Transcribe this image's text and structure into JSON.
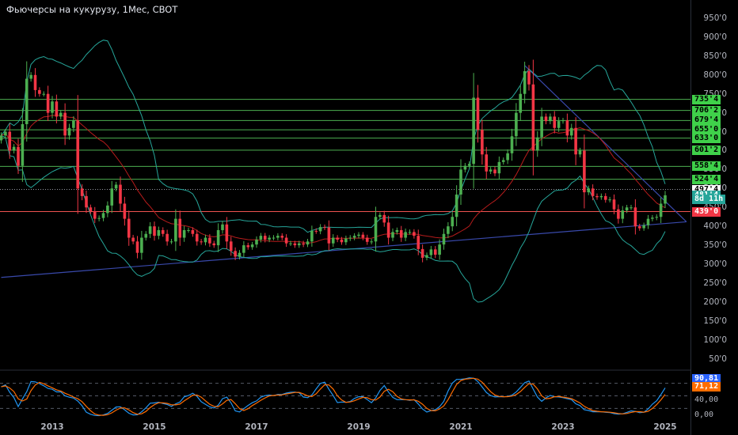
{
  "title": "Фьючерсы на кукурузу, 1Мес, CBOT",
  "price_axis": {
    "ticks": [
      "950'0",
      "900'0",
      "850'0",
      "800'0",
      "750'0",
      "700'0",
      "650'0",
      "600'0",
      "550'0",
      "500'0",
      "450'0",
      "400'0",
      "350'0",
      "300'0",
      "250'0",
      "200'0",
      "150'0",
      "100'0",
      "50'0"
    ]
  },
  "level_labels": [
    {
      "text": "735'4",
      "value": 735.5,
      "bg": "#3fd14a",
      "fg": "#000000"
    },
    {
      "text": "706'2",
      "value": 706.25,
      "bg": "#3fd14a",
      "fg": "#000000"
    },
    {
      "text": "679'4",
      "value": 679.5,
      "bg": "#3fd14a",
      "fg": "#000000"
    },
    {
      "text": "655'0",
      "value": 655.0,
      "bg": "#3fd14a",
      "fg": "#000000"
    },
    {
      "text": "633'0",
      "value": 633.0,
      "bg": "#3fd14a",
      "fg": "#000000"
    },
    {
      "text": "601'2",
      "value": 601.25,
      "bg": "#3fd14a",
      "fg": "#000000"
    },
    {
      "text": "558'4",
      "value": 558.5,
      "bg": "#3fd14a",
      "fg": "#000000"
    },
    {
      "text": "524'4",
      "value": 524.5,
      "bg": "#3fd14a",
      "fg": "#000000"
    },
    {
      "text": "497'4",
      "value": 497.5,
      "bg": "#ffffff",
      "fg": "#000000"
    },
    {
      "text": "481'4",
      "value": 481.5,
      "bg": "#26a69a",
      "fg": "#ffffff"
    },
    {
      "text": "8d 11h",
      "value": 470.5,
      "bg": "#26a69a",
      "fg": "#ffffff"
    },
    {
      "text": "439'0",
      "value": 439.0,
      "bg": "#f23645",
      "fg": "#ffffff"
    }
  ],
  "osc_labels": [
    {
      "text": "90,81",
      "value": 90.81,
      "bg": "#2962ff",
      "fg": "#ffffff"
    },
    {
      "text": "71,12",
      "value": 71.12,
      "bg": "#ff6d00",
      "fg": "#ffffff"
    },
    {
      "text": "40,00",
      "value": 40.0,
      "bg": null,
      "fg": "#b2b5be"
    },
    {
      "text": "0,00",
      "value": 0.0,
      "bg": null,
      "fg": "#b2b5be"
    }
  ],
  "x_axis": {
    "labels": [
      "2013",
      "2015",
      "2017",
      "2019",
      "2021",
      "2023",
      "2025"
    ]
  },
  "colors": {
    "up": "#4caf50",
    "down": "#f23645",
    "hline": "#4caf50",
    "support": "#ef5350",
    "trend": "#3949ab",
    "bb": "#26a69a",
    "ma": "#b71c1c",
    "k": "#2196f3",
    "d": "#ff6d00"
  },
  "chart_data": {
    "type": "candlestick",
    "interval": "1 month",
    "x_range": [
      "2012-01",
      "2025-02"
    ],
    "y_range": [
      0,
      980
    ],
    "horizontal_levels": [
      735.5,
      706.25,
      679.5,
      655.0,
      633.0,
      601.25,
      558.5,
      524.5
    ],
    "support_level": 439.0,
    "last_price": 481.5,
    "dotted_level": 497.5,
    "trendlines": [
      {
        "from": [
          "2012-01",
          265
        ],
        "to": [
          "2025-06",
          412
        ]
      },
      {
        "from": [
          "2022-04",
          825
        ],
        "to": [
          "2025-06",
          412
        ]
      }
    ],
    "monthly_closes": [
      [
        2012,
        1,
        640
      ],
      [
        2012,
        2,
        650
      ],
      [
        2012,
        3,
        600
      ],
      [
        2012,
        4,
        610
      ],
      [
        2012,
        5,
        560
      ],
      [
        2012,
        6,
        670
      ],
      [
        2012,
        7,
        790
      ],
      [
        2012,
        8,
        800
      ],
      [
        2012,
        9,
        760
      ],
      [
        2012,
        10,
        750
      ],
      [
        2012,
        11,
        750
      ],
      [
        2012,
        12,
        700
      ],
      [
        2013,
        1,
        730
      ],
      [
        2013,
        2,
        690
      ],
      [
        2013,
        3,
        700
      ],
      [
        2013,
        4,
        640
      ],
      [
        2013,
        5,
        660
      ],
      [
        2013,
        6,
        680
      ],
      [
        2013,
        7,
        500
      ],
      [
        2013,
        8,
        480
      ],
      [
        2013,
        9,
        450
      ],
      [
        2013,
        10,
        440
      ],
      [
        2013,
        11,
        420
      ],
      [
        2013,
        12,
        422
      ],
      [
        2014,
        1,
        435
      ],
      [
        2014,
        2,
        455
      ],
      [
        2014,
        3,
        500
      ],
      [
        2014,
        4,
        510
      ],
      [
        2014,
        5,
        460
      ],
      [
        2014,
        6,
        420
      ],
      [
        2014,
        7,
        370
      ],
      [
        2014,
        8,
        360
      ],
      [
        2014,
        9,
        330
      ],
      [
        2014,
        10,
        370
      ],
      [
        2014,
        11,
        380
      ],
      [
        2014,
        12,
        400
      ],
      [
        2015,
        1,
        375
      ],
      [
        2015,
        2,
        390
      ],
      [
        2015,
        3,
        380
      ],
      [
        2015,
        4,
        360
      ],
      [
        2015,
        5,
        360
      ],
      [
        2015,
        6,
        420
      ],
      [
        2015,
        7,
        370
      ],
      [
        2015,
        8,
        390
      ],
      [
        2015,
        9,
        390
      ],
      [
        2015,
        10,
        380
      ],
      [
        2015,
        11,
        360
      ],
      [
        2015,
        12,
        358
      ],
      [
        2016,
        1,
        370
      ],
      [
        2016,
        2,
        355
      ],
      [
        2016,
        3,
        350
      ],
      [
        2016,
        4,
        390
      ],
      [
        2016,
        5,
        405
      ],
      [
        2016,
        6,
        360
      ],
      [
        2016,
        7,
        335
      ],
      [
        2016,
        8,
        320
      ],
      [
        2016,
        9,
        330
      ],
      [
        2016,
        10,
        350
      ],
      [
        2016,
        11,
        345
      ],
      [
        2016,
        12,
        352
      ],
      [
        2017,
        1,
        365
      ],
      [
        2017,
        2,
        375
      ],
      [
        2017,
        3,
        365
      ],
      [
        2017,
        4,
        370
      ],
      [
        2017,
        5,
        370
      ],
      [
        2017,
        6,
        375
      ],
      [
        2017,
        7,
        370
      ],
      [
        2017,
        8,
        355
      ],
      [
        2017,
        9,
        355
      ],
      [
        2017,
        10,
        350
      ],
      [
        2017,
        11,
        355
      ],
      [
        2017,
        12,
        352
      ],
      [
        2018,
        1,
        360
      ],
      [
        2018,
        2,
        388
      ],
      [
        2018,
        3,
        387
      ],
      [
        2018,
        4,
        398
      ],
      [
        2018,
        5,
        397
      ],
      [
        2018,
        6,
        355
      ],
      [
        2018,
        7,
        370
      ],
      [
        2018,
        8,
        365
      ],
      [
        2018,
        9,
        358
      ],
      [
        2018,
        10,
        368
      ],
      [
        2018,
        11,
        370
      ],
      [
        2018,
        12,
        375
      ],
      [
        2019,
        1,
        378
      ],
      [
        2019,
        2,
        370
      ],
      [
        2019,
        3,
        359
      ],
      [
        2019,
        4,
        360
      ],
      [
        2019,
        5,
        425
      ],
      [
        2019,
        6,
        430
      ],
      [
        2019,
        7,
        410
      ],
      [
        2019,
        8,
        370
      ],
      [
        2019,
        9,
        385
      ],
      [
        2019,
        10,
        390
      ],
      [
        2019,
        11,
        370
      ],
      [
        2019,
        12,
        385
      ],
      [
        2020,
        1,
        385
      ],
      [
        2020,
        2,
        375
      ],
      [
        2020,
        3,
        340
      ],
      [
        2020,
        4,
        317
      ],
      [
        2020,
        5,
        324
      ],
      [
        2020,
        6,
        339
      ],
      [
        2020,
        7,
        325
      ],
      [
        2020,
        8,
        352
      ],
      [
        2020,
        9,
        380
      ],
      [
        2020,
        10,
        400
      ],
      [
        2020,
        11,
        425
      ],
      [
        2020,
        12,
        484
      ],
      [
        2021,
        1,
        550
      ],
      [
        2021,
        2,
        560
      ],
      [
        2021,
        3,
        565
      ],
      [
        2021,
        4,
        740
      ],
      [
        2021,
        5,
        655
      ],
      [
        2021,
        6,
        590
      ],
      [
        2021,
        7,
        545
      ],
      [
        2021,
        8,
        550
      ],
      [
        2021,
        9,
        540
      ],
      [
        2021,
        10,
        570
      ],
      [
        2021,
        11,
        575
      ],
      [
        2021,
        12,
        593
      ],
      [
        2022,
        1,
        638
      ],
      [
        2022,
        2,
        700
      ],
      [
        2022,
        3,
        750
      ],
      [
        2022,
        4,
        810
      ],
      [
        2022,
        5,
        775
      ],
      [
        2022,
        6,
        600
      ],
      [
        2022,
        7,
        635
      ],
      [
        2022,
        8,
        690
      ],
      [
        2022,
        9,
        678
      ],
      [
        2022,
        10,
        690
      ],
      [
        2022,
        11,
        660
      ],
      [
        2022,
        12,
        678
      ],
      [
        2023,
        1,
        680
      ],
      [
        2023,
        2,
        640
      ],
      [
        2023,
        3,
        660
      ],
      [
        2023,
        4,
        590
      ],
      [
        2023,
        5,
        600
      ],
      [
        2023,
        6,
        490
      ],
      [
        2023,
        7,
        500
      ],
      [
        2023,
        8,
        480
      ],
      [
        2023,
        9,
        477
      ],
      [
        2023,
        10,
        480
      ],
      [
        2023,
        11,
        470
      ],
      [
        2023,
        12,
        471
      ],
      [
        2024,
        1,
        445
      ],
      [
        2024,
        2,
        420
      ],
      [
        2024,
        3,
        442
      ],
      [
        2024,
        4,
        450
      ],
      [
        2024,
        5,
        450
      ],
      [
        2024,
        6,
        400
      ],
      [
        2024,
        7,
        395
      ],
      [
        2024,
        8,
        403
      ],
      [
        2024,
        9,
        420
      ],
      [
        2024,
        10,
        423
      ],
      [
        2024,
        11,
        425
      ],
      [
        2024,
        12,
        460
      ],
      [
        2025,
        1,
        482
      ]
    ]
  }
}
